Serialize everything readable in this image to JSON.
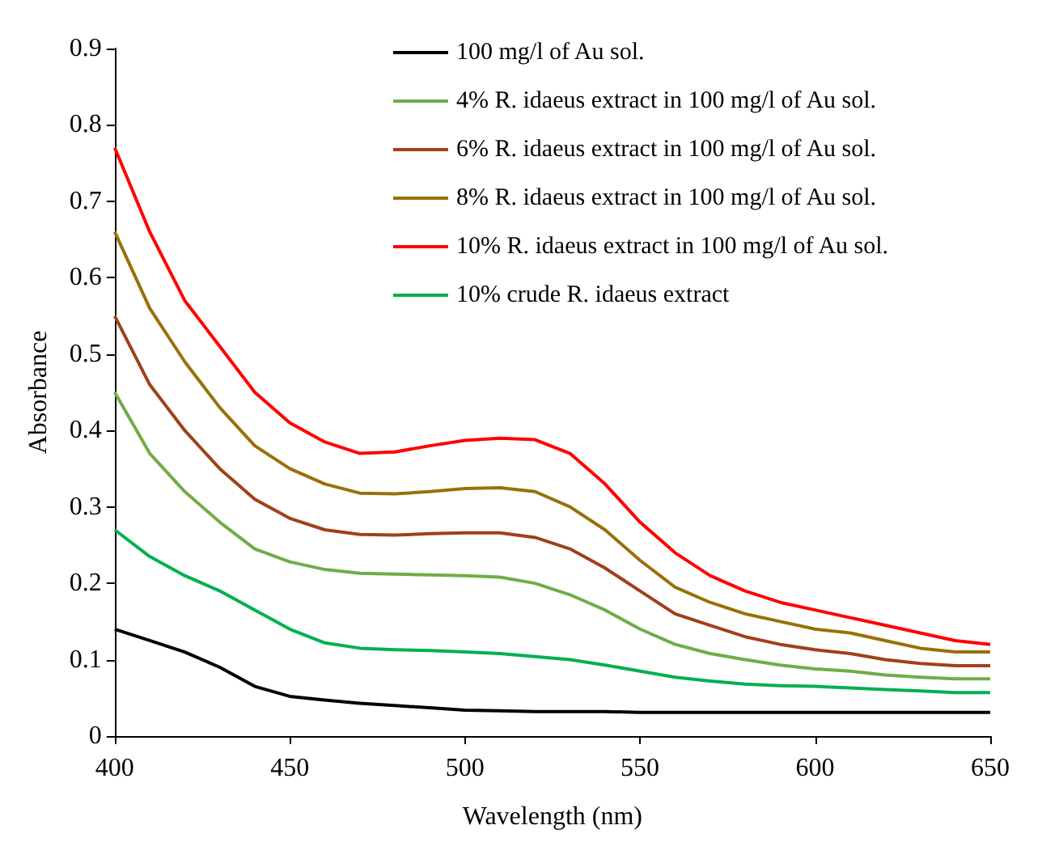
{
  "chart_data": {
    "type": "line",
    "xlabel": "Wavelength (nm)",
    "ylabel": "Absorbance",
    "x": [
      400,
      410,
      420,
      430,
      440,
      450,
      460,
      470,
      480,
      490,
      500,
      510,
      520,
      530,
      540,
      550,
      560,
      570,
      580,
      590,
      600,
      610,
      620,
      630,
      640,
      650
    ],
    "xlim": [
      400,
      650
    ],
    "xticks": [
      400,
      450,
      500,
      550,
      600,
      650
    ],
    "ylim": [
      0,
      0.9
    ],
    "yticks": [
      0,
      0.1,
      0.2,
      0.3,
      0.4,
      0.5,
      0.6,
      0.7,
      0.8,
      0.9
    ],
    "grid": false,
    "legend": "top right",
    "marker": "none",
    "line_style": "solid",
    "series": [
      {
        "name": "100 mg/l of Au sol.",
        "color": "#000000",
        "values": [
          0.14,
          0.125,
          0.11,
          0.09,
          0.065,
          0.052,
          0.047,
          0.043,
          0.04,
          0.037,
          0.034,
          0.033,
          0.032,
          0.032,
          0.032,
          0.031,
          0.031,
          0.031,
          0.031,
          0.031,
          0.031,
          0.031,
          0.031,
          0.031,
          0.031,
          0.031
        ]
      },
      {
        "name": "4% R. idaeus extract in 100 mg/l of Au sol.",
        "color": "#70ad47",
        "values": [
          0.45,
          0.37,
          0.32,
          0.28,
          0.245,
          0.228,
          0.218,
          0.213,
          0.212,
          0.211,
          0.21,
          0.208,
          0.2,
          0.185,
          0.165,
          0.14,
          0.12,
          0.108,
          0.1,
          0.093,
          0.088,
          0.085,
          0.08,
          0.077,
          0.075,
          0.075
        ]
      },
      {
        "name": "6% R. idaeus extract in 100 mg/l of Au sol.",
        "color": "#a0401a",
        "values": [
          0.55,
          0.46,
          0.4,
          0.35,
          0.31,
          0.285,
          0.27,
          0.264,
          0.263,
          0.265,
          0.266,
          0.266,
          0.26,
          0.245,
          0.22,
          0.19,
          0.16,
          0.145,
          0.13,
          0.12,
          0.113,
          0.108,
          0.1,
          0.095,
          0.092,
          0.092
        ]
      },
      {
        "name": "8% R. idaeus extract in 100 mg/l of Au sol.",
        "color": "#99700a",
        "values": [
          0.66,
          0.56,
          0.49,
          0.43,
          0.38,
          0.35,
          0.33,
          0.318,
          0.317,
          0.32,
          0.324,
          0.325,
          0.32,
          0.3,
          0.27,
          0.23,
          0.195,
          0.175,
          0.16,
          0.15,
          0.14,
          0.135,
          0.125,
          0.115,
          0.11,
          0.11
        ]
      },
      {
        "name": "10% R. idaeus extract in 100 mg/l of Au sol.",
        "color": "#ff0000",
        "values": [
          0.77,
          0.66,
          0.57,
          0.51,
          0.45,
          0.41,
          0.385,
          0.37,
          0.372,
          0.38,
          0.387,
          0.39,
          0.388,
          0.37,
          0.33,
          0.28,
          0.24,
          0.21,
          0.19,
          0.175,
          0.165,
          0.155,
          0.145,
          0.135,
          0.125,
          0.12
        ]
      },
      {
        "name": "10% crude R. idaeus extract",
        "color": "#00b050",
        "values": [
          0.27,
          0.235,
          0.21,
          0.19,
          0.165,
          0.14,
          0.122,
          0.115,
          0.113,
          0.112,
          0.11,
          0.108,
          0.104,
          0.1,
          0.093,
          0.085,
          0.077,
          0.072,
          0.068,
          0.066,
          0.065,
          0.063,
          0.061,
          0.059,
          0.057,
          0.057
        ]
      }
    ]
  }
}
